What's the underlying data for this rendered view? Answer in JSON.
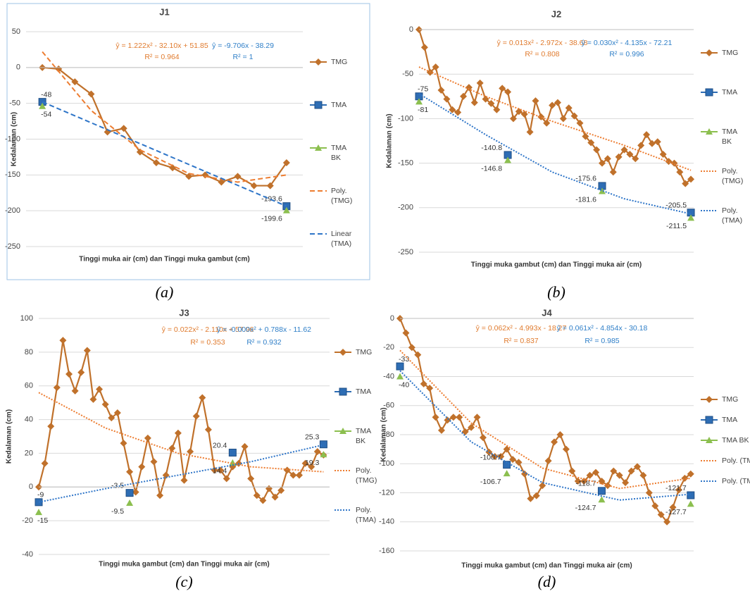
{
  "chart_data": [
    {
      "type": "line",
      "title": "J1",
      "caption": "(a)",
      "x_label": "Tinggi muka air (cm) dan Tinggi muka gambut (cm)",
      "y_label": "Kedalaman (cm)",
      "x": [
        1,
        2,
        3,
        4,
        5,
        6,
        7,
        8,
        9,
        10,
        11,
        12,
        13,
        14,
        15,
        16
      ],
      "xlim": [
        0,
        17
      ],
      "ylim": [
        -250,
        50
      ],
      "yticks": [
        -250,
        -200,
        -150,
        -100,
        -50,
        0,
        50
      ],
      "grid": true,
      "legend": "right",
      "annotations": [
        {
          "text": "ŷ = 1.222x² - 32.10x + 51.85",
          "color": "#e07b2e"
        },
        {
          "text": "R² = 0.964",
          "color": "#e07b2e"
        },
        {
          "text": "ŷ = -9.706x - 38.29",
          "color": "#2f7fc8"
        },
        {
          "text": "R² = 1",
          "color": "#2f7fc8"
        }
      ],
      "series": [
        {
          "name": "TMG",
          "color": "#c0712b",
          "marker": "diamond",
          "values": [
            0,
            -2,
            -20,
            -37,
            -90,
            -85,
            -118,
            -133,
            -140,
            -152,
            -150,
            -160,
            -152,
            -165,
            -165,
            -133
          ]
        },
        {
          "name": "TMA",
          "color": "#2e6db4",
          "marker": "square",
          "show_labels": true,
          "x": [
            1,
            16
          ],
          "values": [
            -48,
            -193.6
          ]
        },
        {
          "name": "TMA BK",
          "color": "#8cbf4f",
          "marker": "triangle",
          "show_labels": true,
          "x": [
            1,
            16
          ],
          "values": [
            -54,
            -199.6
          ]
        },
        {
          "name": "Poly. (TMG)",
          "color": "#ed7d31",
          "dash": "dashed",
          "x": [
            1,
            4,
            7,
            10,
            13,
            16
          ],
          "values": [
            22,
            -60,
            -115,
            -148,
            -160,
            -150
          ]
        },
        {
          "name": "Linear (TMA)",
          "color": "#2e75c8",
          "dash": "dashed",
          "x": [
            1,
            16
          ],
          "values": [
            -48,
            -193.6
          ]
        }
      ]
    },
    {
      "type": "line",
      "title": "J2",
      "caption": "(b)",
      "x_label": "Tinggi muka gambut (cm) dan Tinggi muka air (cm)",
      "y_label": "Kedalaman (cm)",
      "x": [
        1,
        2,
        3,
        4,
        5,
        6,
        7,
        8,
        9,
        10,
        11,
        12,
        13,
        14,
        15,
        16,
        17,
        18,
        19,
        20,
        21,
        22,
        23,
        24,
        25,
        26,
        27,
        28,
        29,
        30,
        31,
        32,
        33,
        34,
        35,
        36,
        37,
        38,
        39,
        40,
        41,
        42,
        43,
        44,
        45,
        46,
        47,
        48,
        49,
        50
      ],
      "xlim": [
        1,
        50.5
      ],
      "ylim": [
        -250,
        0
      ],
      "yticks": [
        -250,
        -200,
        -150,
        -100,
        -50,
        0
      ],
      "grid": true,
      "legend": "right",
      "annotations": [
        {
          "text": "ŷ = 0.013x² - 2.972x - 38.68",
          "color": "#e07b2e"
        },
        {
          "text": "R² = 0.808",
          "color": "#e07b2e"
        },
        {
          "text": "ŷ = 0.030x² - 4.135x - 72.21",
          "color": "#2f7fc8"
        },
        {
          "text": "R² = 0.996",
          "color": "#2f7fc8"
        }
      ],
      "series": [
        {
          "name": "TMG",
          "color": "#c0712b",
          "marker": "diamond",
          "values": [
            0,
            -20,
            -48,
            -42,
            -68,
            -78,
            -90,
            -93,
            -75,
            -65,
            -82,
            -60,
            -78,
            -83,
            -90,
            -66,
            -70,
            -100,
            -92,
            -95,
            -115,
            -80,
            -98,
            -105,
            -85,
            -82,
            -100,
            -88,
            -97,
            -105,
            -120,
            -127,
            -135,
            -150,
            -145,
            -160,
            -143,
            -135,
            -140,
            -145,
            -130,
            -118,
            -128,
            -126,
            -140,
            -148,
            -150,
            -160,
            -173,
            -168
          ]
        },
        {
          "name": "TMA",
          "color": "#2e6db4",
          "marker": "square",
          "show_labels": true,
          "x": [
            1,
            17,
            34,
            50
          ],
          "values": [
            -75,
            -140.8,
            -175.6,
            -205.5
          ]
        },
        {
          "name": "TMA BK",
          "color": "#8cbf4f",
          "marker": "triangle",
          "show_labels": true,
          "x": [
            1,
            17,
            34,
            50
          ],
          "values": [
            -81,
            -146.8,
            -181.6,
            -211.5
          ]
        },
        {
          "name": "Poly. (TMG)",
          "color": "#ed7d31",
          "dash": "dotted",
          "x": [
            1,
            13,
            25,
            38,
            50
          ],
          "values": [
            -42,
            -75,
            -103,
            -130,
            -158
          ]
        },
        {
          "name": "Poly. (TMA)",
          "color": "#2e75c8",
          "dash": "dotted",
          "x": [
            1,
            13,
            25,
            38,
            50
          ],
          "values": [
            -72,
            -118,
            -160,
            -190,
            -207
          ]
        }
      ]
    },
    {
      "type": "line",
      "title": "J3",
      "caption": "(c)",
      "x_label": "Tinggi muka gambut (cm) dan Tinggi muka air (cm)",
      "y_label": "Kedalaman (cm)",
      "x": [
        1,
        2,
        3,
        4,
        5,
        6,
        7,
        8,
        9,
        10,
        11,
        12,
        13,
        14,
        15,
        16,
        17,
        18,
        19,
        20,
        21,
        22,
        23,
        24,
        25,
        26,
        27,
        28,
        29,
        30,
        31,
        32,
        33,
        34,
        35,
        36,
        37,
        38,
        39,
        40,
        41,
        42,
        43,
        44,
        45,
        46,
        47,
        48
      ],
      "xlim": [
        1,
        49
      ],
      "ylim": [
        -40,
        100
      ],
      "yticks": [
        -40,
        -20,
        0,
        20,
        40,
        60,
        80,
        100
      ],
      "grid": true,
      "legend": "right",
      "annotations": [
        {
          "text": "ŷ = 0.022x² - 2.110x + 57.96",
          "color": "#e07b2e"
        },
        {
          "text": "R² = 0.353",
          "color": "#e07b2e"
        },
        {
          "text": "ŷ = -0.000x² + 0.788x - 11.62",
          "color": "#2f7fc8"
        },
        {
          "text": "R² = 0.932",
          "color": "#2f7fc8"
        }
      ],
      "series": [
        {
          "name": "TMG",
          "color": "#c0712b",
          "marker": "diamond",
          "values": [
            0,
            14,
            36,
            59,
            87,
            67,
            57,
            68,
            81,
            52,
            58,
            49,
            41,
            44,
            26,
            9,
            -3,
            12,
            29,
            15,
            -5,
            7,
            23,
            32,
            4,
            21,
            42,
            53,
            34,
            10,
            10,
            5,
            12,
            14,
            24,
            5,
            -5,
            -8,
            -1,
            -6,
            -2,
            10,
            7,
            7,
            14,
            12,
            21,
            19
          ]
        },
        {
          "name": "TMA",
          "color": "#2e6db4",
          "marker": "square",
          "show_labels": true,
          "x": [
            1,
            16,
            33,
            48
          ],
          "values": [
            -9,
            -3.5,
            20.4,
            25.3
          ]
        },
        {
          "name": "TMA BK",
          "color": "#8cbf4f",
          "marker": "triangle",
          "show_labels": true,
          "x": [
            1,
            16,
            33,
            48
          ],
          "values": [
            -15,
            -9.5,
            14.4,
            19.3
          ]
        },
        {
          "name": "Poly. (TMG)",
          "color": "#ed7d31",
          "dash": "dotted",
          "x": [
            1,
            12,
            24,
            36,
            48
          ],
          "values": [
            56,
            35,
            20,
            12,
            9
          ]
        },
        {
          "name": "Poly. (TMA)",
          "color": "#2e75c8",
          "dash": "dotted",
          "x": [
            1,
            12,
            24,
            36,
            48
          ],
          "values": [
            -9,
            -1,
            7,
            15,
            25
          ]
        }
      ]
    },
    {
      "type": "line",
      "title": "J4",
      "caption": "(d)",
      "x_label": "Tinggi muka gambut (cm) dan Tinggi muka air (cm)",
      "y_label": "Kedalaman (cm)",
      "x": [
        1,
        2,
        3,
        4,
        5,
        6,
        7,
        8,
        9,
        10,
        11,
        12,
        13,
        14,
        15,
        16,
        17,
        18,
        19,
        20,
        21,
        22,
        23,
        24,
        25,
        26,
        27,
        28,
        29,
        30,
        31,
        32,
        33,
        34,
        35,
        36,
        37,
        38,
        39,
        40,
        41,
        42,
        43,
        44,
        45,
        46,
        47,
        48,
        49,
        50
      ],
      "xlim": [
        1,
        50.5
      ],
      "ylim": [
        -160,
        0
      ],
      "yticks": [
        -160,
        -140,
        -120,
        -100,
        -80,
        -60,
        -40,
        -20,
        0
      ],
      "grid": true,
      "legend": "right",
      "annotations": [
        {
          "text": "ŷ = 0.062x² - 4.993x - 18.27",
          "color": "#e07b2e"
        },
        {
          "text": "R² = 0.837",
          "color": "#e07b2e"
        },
        {
          "text": "ŷ = 0.061x² - 4.854x - 30.18",
          "color": "#2f7fc8"
        },
        {
          "text": "R² = 0.985",
          "color": "#2f7fc8"
        }
      ],
      "series": [
        {
          "name": "TMG",
          "color": "#c0712b",
          "marker": "diamond",
          "values": [
            0,
            -10,
            -20,
            -25,
            -45,
            -48,
            -68,
            -77,
            -70,
            -68,
            -68,
            -78,
            -75,
            -68,
            -82,
            -92,
            -95,
            -95,
            -90,
            -97,
            -99,
            -107,
            -124,
            -122,
            -115,
            -98,
            -85,
            -80,
            -90,
            -105,
            -112,
            -112,
            -108,
            -106,
            -112,
            -115,
            -105,
            -108,
            -113,
            -105,
            -102,
            -108,
            -120,
            -129,
            -135,
            -140,
            -130,
            -118,
            -110,
            -107
          ]
        },
        {
          "name": "TMA",
          "color": "#2e6db4",
          "marker": "square",
          "show_labels": true,
          "x": [
            1,
            19,
            35,
            50
          ],
          "values": [
            -33,
            -100.7,
            -118.7,
            -121.7
          ]
        },
        {
          "name": "TMA BK",
          "color": "#8cbf4f",
          "marker": "triangle",
          "show_labels": true,
          "x": [
            1,
            19,
            35,
            50
          ],
          "values": [
            -40,
            -106.7,
            -124.7,
            -127.7
          ]
        },
        {
          "name": "Poly. (TMG)",
          "color": "#ed7d31",
          "dash": "dotted",
          "x": [
            1,
            13,
            25,
            38,
            50
          ],
          "values": [
            -22,
            -72,
            -103,
            -117,
            -110
          ]
        },
        {
          "name": "Poly. (TMA)",
          "color": "#2e75c8",
          "dash": "dotted",
          "x": [
            1,
            13,
            25,
            38,
            50
          ],
          "values": [
            -36,
            -85,
            -113,
            -125,
            -121
          ]
        }
      ]
    }
  ]
}
